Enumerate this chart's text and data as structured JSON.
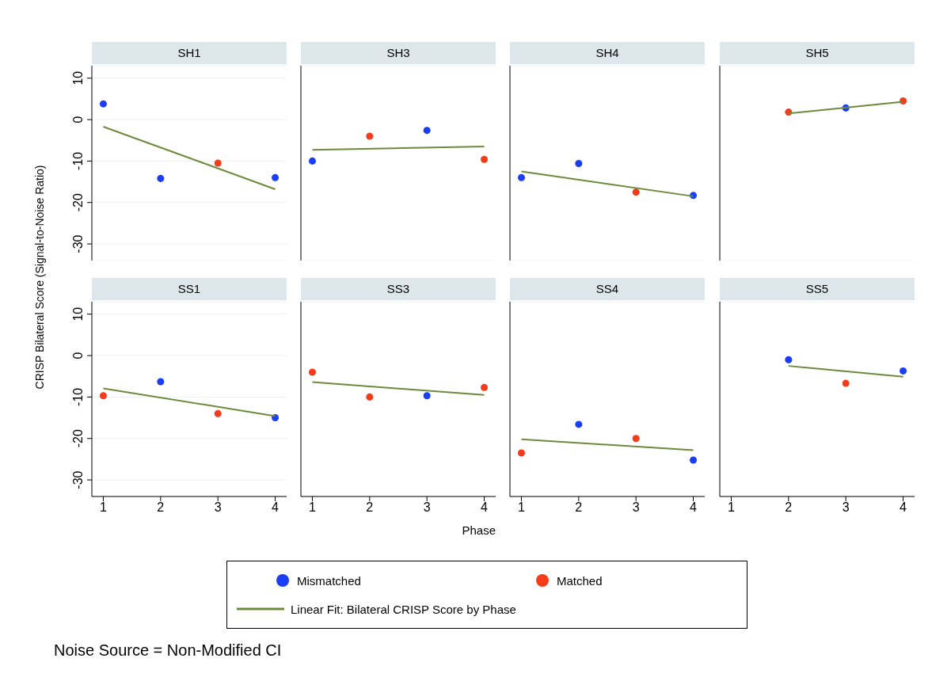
{
  "chart_data": [
    {
      "type": "scatter",
      "title": "SH1",
      "ylabel": "CRISP Bilateral Score (Signal-to-Noise Ratio)",
      "legend": "bottom",
      "annotations": [
        "Noise Source = Non-Modified CI"
      ],
      "tick_labels": "y",
      "xlim": [
        0.8,
        4.2
      ],
      "ylim": [
        -34,
        13
      ],
      "xticks": [
        1,
        2,
        3,
        4
      ],
      "yticks": [
        -30,
        -20,
        -10,
        0,
        10
      ],
      "grid": "y",
      "series": [
        {
          "name": "Mismatched",
          "color": "#1a3ef5",
          "marker": "circle",
          "x": [
            1,
            2,
            4
          ],
          "values": [
            3.8,
            -14.2,
            -14
          ]
        },
        {
          "name": "Matched",
          "color": "#f43c1a",
          "marker": "circle",
          "x": [
            3
          ],
          "values": [
            -10.5
          ]
        },
        {
          "name": "Linear Fit: Bilateral CRISP Score by Phase",
          "type": "line",
          "color": "#6e8a3c",
          "x": [
            1,
            4
          ],
          "values": [
            -1.7,
            -16.8
          ]
        }
      ]
    },
    {
      "type": "scatter",
      "title": "SH3",
      "tick_labels": false,
      "xlim": [
        0.8,
        4.2
      ],
      "ylim": [
        -34,
        13
      ],
      "xticks": [
        1,
        2,
        3,
        4
      ],
      "yticks": [
        -30,
        -20,
        -10,
        0,
        10
      ],
      "grid": "y",
      "series": [
        {
          "color": "#1a3ef5",
          "marker": "circle",
          "x": [
            1,
            3
          ],
          "values": [
            -10,
            -2.6
          ]
        },
        {
          "color": "#f43c1a",
          "marker": "circle",
          "x": [
            2,
            4
          ],
          "values": [
            -4,
            -9.6
          ]
        },
        {
          "type": "line",
          "color": "#6e8a3c",
          "x": [
            1,
            4
          ],
          "values": [
            -7.3,
            -6.5
          ]
        }
      ]
    },
    {
      "type": "scatter",
      "title": "SH4",
      "tick_labels": false,
      "xlim": [
        0.8,
        4.2
      ],
      "ylim": [
        -34,
        13
      ],
      "xticks": [
        1,
        2,
        3,
        4
      ],
      "yticks": [
        -30,
        -20,
        -10,
        0,
        10
      ],
      "grid": "y",
      "series": [
        {
          "color": "#1a3ef5",
          "marker": "circle",
          "x": [
            1,
            2,
            4
          ],
          "values": [
            -14,
            -10.6,
            -18.3
          ]
        },
        {
          "color": "#f43c1a",
          "marker": "circle",
          "x": [
            3
          ],
          "values": [
            -17.5
          ]
        },
        {
          "type": "line",
          "color": "#6e8a3c",
          "x": [
            1,
            4
          ],
          "values": [
            -12.5,
            -18.5
          ]
        }
      ]
    },
    {
      "type": "scatter",
      "title": "SH5",
      "tick_labels": false,
      "xlim": [
        0.8,
        4.2
      ],
      "ylim": [
        -34,
        13
      ],
      "xticks": [
        1,
        2,
        3,
        4
      ],
      "yticks": [
        -30,
        -20,
        -10,
        0,
        10
      ],
      "grid": "y",
      "series": [
        {
          "color": "#1a3ef5",
          "marker": "circle",
          "x": [
            3
          ],
          "values": [
            2.8
          ]
        },
        {
          "color": "#f43c1a",
          "marker": "circle",
          "x": [
            2,
            4
          ],
          "values": [
            1.8,
            4.5
          ]
        },
        {
          "type": "line",
          "color": "#6e8a3c",
          "x": [
            2,
            4
          ],
          "values": [
            1.5,
            4.3
          ]
        }
      ]
    },
    {
      "type": "scatter",
      "title": "SS1",
      "xlim": [
        0.8,
        4.2
      ],
      "ylim": [
        -34,
        13
      ],
      "xticks": [
        1,
        2,
        3,
        4
      ],
      "yticks": [
        -30,
        -20,
        -10,
        0,
        10
      ],
      "grid": "y",
      "series": [
        {
          "color": "#1a3ef5",
          "marker": "circle",
          "x": [
            2,
            4
          ],
          "values": [
            -6.3,
            -15
          ]
        },
        {
          "color": "#f43c1a",
          "marker": "circle",
          "x": [
            1,
            3
          ],
          "values": [
            -9.7,
            -14
          ]
        },
        {
          "type": "line",
          "color": "#6e8a3c",
          "x": [
            1,
            4
          ],
          "values": [
            -7.9,
            -14.6
          ]
        }
      ]
    },
    {
      "type": "scatter",
      "title": "SS3",
      "xlabel": "Phase",
      "tick_labels": "x",
      "xlim": [
        0.8,
        4.2
      ],
      "ylim": [
        -34,
        13
      ],
      "xticks": [
        1,
        2,
        3,
        4
      ],
      "yticks": [
        -30,
        -20,
        -10,
        0,
        10
      ],
      "grid": "y",
      "series": [
        {
          "color": "#1a3ef5",
          "marker": "circle",
          "x": [
            3
          ],
          "values": [
            -9.7
          ]
        },
        {
          "color": "#f43c1a",
          "marker": "circle",
          "x": [
            1,
            2,
            4
          ],
          "values": [
            -4,
            -10,
            -7.7
          ]
        },
        {
          "type": "line",
          "color": "#6e8a3c",
          "x": [
            1,
            4
          ],
          "values": [
            -6.4,
            -9.5
          ]
        }
      ]
    },
    {
      "type": "scatter",
      "title": "SS4",
      "tick_labels": "x",
      "xlim": [
        0.8,
        4.2
      ],
      "ylim": [
        -34,
        13
      ],
      "xticks": [
        1,
        2,
        3,
        4
      ],
      "yticks": [
        -30,
        -20,
        -10,
        0,
        10
      ],
      "grid": "y",
      "series": [
        {
          "color": "#1a3ef5",
          "marker": "circle",
          "x": [
            2,
            4
          ],
          "values": [
            -16.6,
            -25.2
          ]
        },
        {
          "color": "#f43c1a",
          "marker": "circle",
          "x": [
            1,
            3
          ],
          "values": [
            -23.5,
            -20
          ]
        },
        {
          "type": "line",
          "color": "#6e8a3c",
          "x": [
            1,
            4
          ],
          "values": [
            -20.2,
            -22.8
          ]
        }
      ]
    },
    {
      "type": "scatter",
      "title": "SS5",
      "tick_labels": "x",
      "xlim": [
        0.8,
        4.2
      ],
      "ylim": [
        -34,
        13
      ],
      "xticks": [
        1,
        2,
        3,
        4
      ],
      "yticks": [
        -30,
        -20,
        -10,
        0,
        10
      ],
      "grid": "y",
      "series": [
        {
          "color": "#1a3ef5",
          "marker": "circle",
          "x": [
            2,
            4
          ],
          "values": [
            -1,
            -3.7
          ]
        },
        {
          "color": "#f43c1a",
          "marker": "circle",
          "x": [
            3
          ],
          "values": [
            -6.7
          ]
        },
        {
          "type": "line",
          "color": "#6e8a3c",
          "x": [
            2,
            4
          ],
          "values": [
            -2.5,
            -5.1
          ]
        }
      ]
    }
  ]
}
